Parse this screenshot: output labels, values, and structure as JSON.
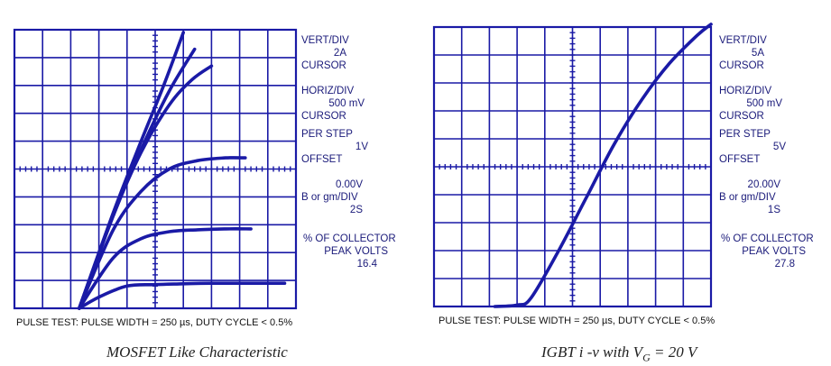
{
  "figures": [
    {
      "id": "mosfet",
      "settings": {
        "vert_div_label": "VERT/DIV",
        "vert_div_value": "2A",
        "cursor1": "CURSOR",
        "horiz_div_label": "HORIZ/DIV",
        "horiz_div_value": "500 mV",
        "cursor2": "CURSOR",
        "per_step_label": "PER STEP",
        "per_step_value": "1V",
        "offset_label": "OFFSET",
        "offset_value": "0.00V",
        "gm_label": "B or gm/DIV",
        "gm_value": "2S",
        "collector_label": "% OF COLLECTOR",
        "peak_label": "PEAK VOLTS",
        "peak_value": "16.4"
      },
      "footnote": "PULSE TEST: PULSE WIDTH = 250 µs, DUTY CYCLE < 0.5%",
      "caption": "MOSFET Like Characteristic",
      "color": "#1a1aa6"
    },
    {
      "id": "igbt",
      "settings": {
        "vert_div_label": "VERT/DIV",
        "vert_div_value": "5A",
        "cursor1": "CURSOR",
        "horiz_div_label": "HORIZ/DIV",
        "horiz_div_value": "500 mV",
        "cursor2": "CURSOR",
        "per_step_label": "PER STEP",
        "per_step_value": "5V",
        "offset_label": "OFFSET",
        "offset_value": "20.00V",
        "gm_label": "B or gm/DIV",
        "gm_value": "1S",
        "collector_label": "% OF COLLECTOR",
        "peak_label": "PEAK VOLTS",
        "peak_value": "27.8"
      },
      "footnote": "PULSE TEST: PULSE WIDTH = 250 µs, DUTY CYCLE < 0.5%",
      "caption_prefix": "IGBT i -v with V",
      "caption_sub": "G",
      "caption_suffix": " = 20 V",
      "color": "#1a1aa6"
    }
  ],
  "chart_data": [
    {
      "type": "line",
      "grid": true,
      "x_divisions": 10,
      "y_divisions": 10,
      "x_unit": "div (500 mV/div)",
      "y_unit": "div (2 A/div)",
      "xlim": [
        0,
        10
      ],
      "ylim": [
        0,
        10
      ],
      "series": [
        {
          "x": [
            2.3,
            3.0,
            4.0,
            5.0,
            6.0,
            7.0,
            9.6
          ],
          "y": [
            0.0,
            0.4,
            0.8,
            0.85,
            0.88,
            0.9,
            0.9
          ]
        },
        {
          "x": [
            2.3,
            3.5,
            4.5,
            5.5,
            6.5,
            7.5,
            8.4
          ],
          "y": [
            0.0,
            1.8,
            2.5,
            2.75,
            2.82,
            2.85,
            2.85
          ]
        },
        {
          "x": [
            2.3,
            3.5,
            4.5,
            5.5,
            6.5,
            7.5,
            8.2
          ],
          "y": [
            0.0,
            2.8,
            4.2,
            5.0,
            5.3,
            5.4,
            5.4
          ]
        },
        {
          "x": [
            2.3,
            3.5,
            4.5,
            5.5,
            6.3,
            7.0
          ],
          "y": [
            0.0,
            3.3,
            5.6,
            7.3,
            8.2,
            8.7
          ]
        },
        {
          "x": [
            2.3,
            3.5,
            4.5,
            5.5,
            6.4
          ],
          "y": [
            0.0,
            3.3,
            5.7,
            7.8,
            9.3
          ]
        },
        {
          "x": [
            2.3,
            3.5,
            4.5,
            5.3,
            6.0
          ],
          "y": [
            0.0,
            3.4,
            6.0,
            8.0,
            9.9
          ]
        }
      ]
    },
    {
      "type": "line",
      "grid": true,
      "x_divisions": 10,
      "y_divisions": 10,
      "x_unit": "div (500 mV/div)",
      "y_unit": "div (5 A/div)",
      "xlim": [
        0,
        10
      ],
      "ylim": [
        0,
        10
      ],
      "series": [
        {
          "x": [
            2.2,
            3.0,
            3.5,
            4.5,
            5.5,
            6.5,
            7.5,
            8.5,
            9.5,
            10.0
          ],
          "y": [
            0.0,
            0.05,
            0.3,
            2.0,
            3.9,
            5.8,
            7.4,
            8.7,
            9.7,
            10.1
          ]
        }
      ]
    }
  ]
}
